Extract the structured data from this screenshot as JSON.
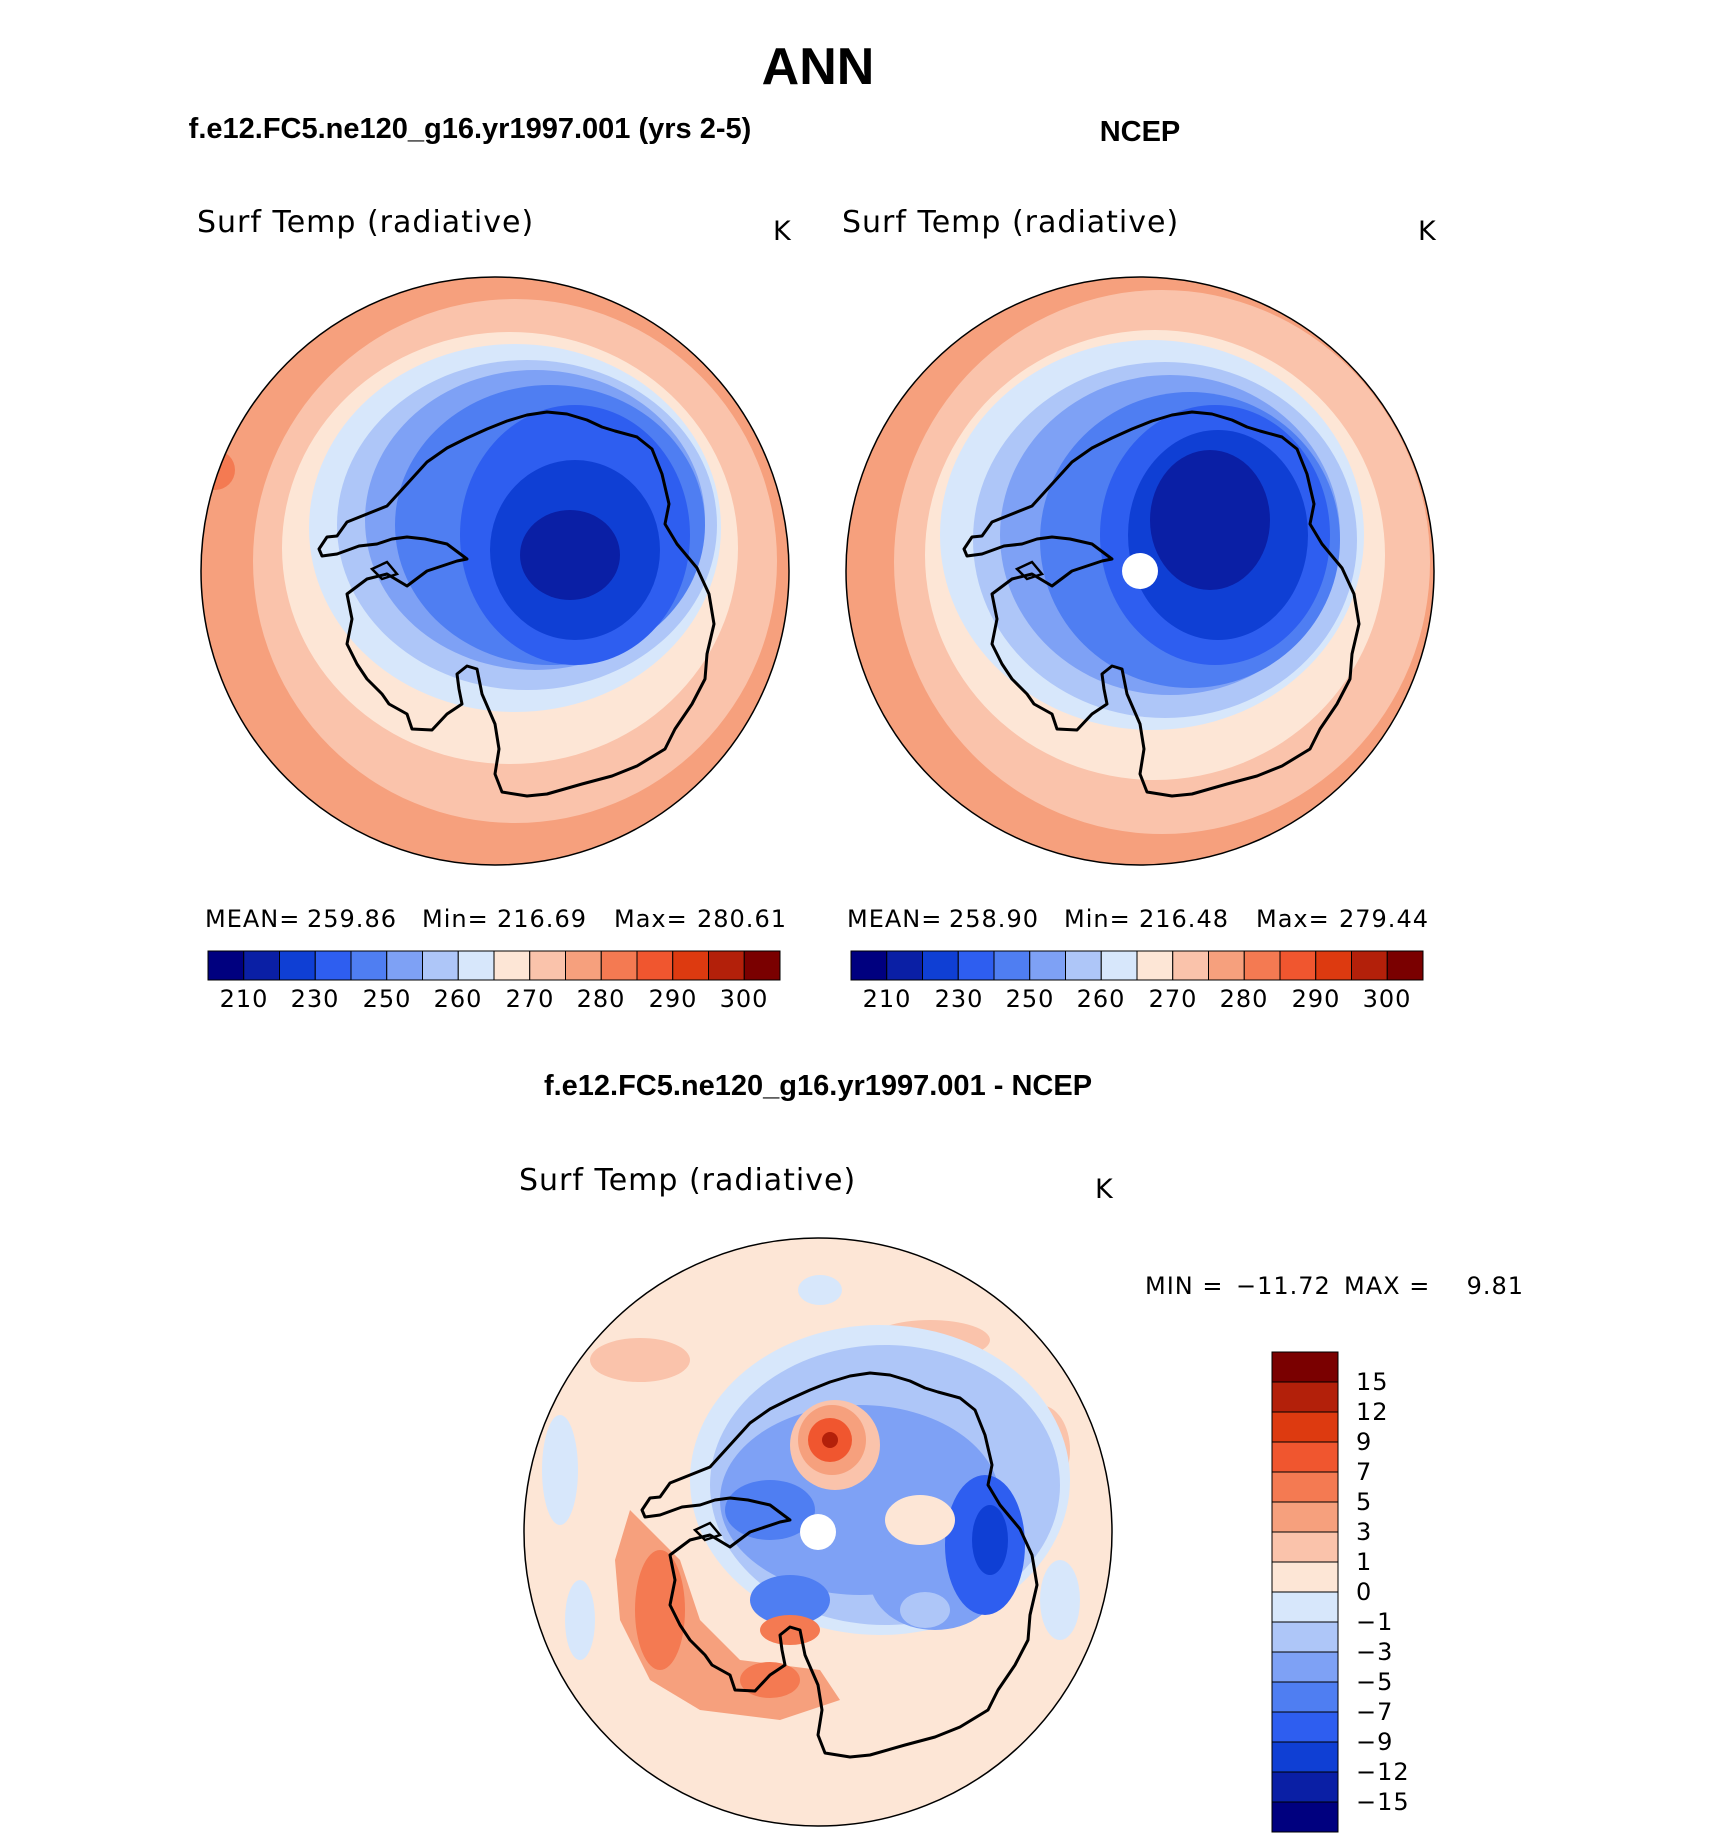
{
  "season": "ANN",
  "panels": [
    {
      "title": "f.e12.FC5.ne120_g16.yr1997.001 (yrs 2-5)",
      "field": "Surf Temp (radiative)",
      "units": "K",
      "stats": {
        "mean_label": "MEAN=",
        "mean": "259.86",
        "min_label": "Min=",
        "min": "216.69",
        "max_label": "Max=",
        "max": "280.61"
      }
    },
    {
      "title": "NCEP",
      "field": "Surf Temp (radiative)",
      "units": "K",
      "stats": {
        "mean_label": "MEAN=",
        "mean": "258.90",
        "min_label": "Min=",
        "min": "216.48",
        "max_label": "Max=",
        "max": "279.44"
      }
    },
    {
      "title": "f.e12.FC5.ne120_g16.yr1997.001 - NCEP",
      "field": "Surf Temp (radiative)",
      "units": "K",
      "stats": {
        "min_label": "MIN =",
        "min": "−11.72",
        "max_label": "MAX =",
        "max": "9.81"
      }
    }
  ],
  "abs_colorbar": {
    "labels": [
      "210",
      "230",
      "250",
      "260",
      "270",
      "280",
      "290",
      "300"
    ],
    "colors": [
      "#00007f",
      "#0a1fa5",
      "#0f3fd4",
      "#2e5ef0",
      "#4f7ef2",
      "#7ea1f5",
      "#aec6f8",
      "#d7e7fb",
      "#fde6d6",
      "#fac3ab",
      "#f6a07d",
      "#f47a52",
      "#f0562f",
      "#dd3a10",
      "#b3200a",
      "#7a0000"
    ]
  },
  "diff_colorbar": {
    "labels": [
      "15",
      "12",
      "9",
      "7",
      "5",
      "3",
      "1",
      "0",
      "−1",
      "−3",
      "−5",
      "−7",
      "−9",
      "−12",
      "−15"
    ],
    "colors": [
      "#7a0000",
      "#b3200a",
      "#dd3a10",
      "#f0562f",
      "#f47a52",
      "#f6a07d",
      "#fac3ab",
      "#fde6d6",
      "#d7e7fb",
      "#aec6f8",
      "#7ea1f5",
      "#4f7ef2",
      "#2e5ef0",
      "#0f3fd4",
      "#0a1fa5",
      "#00007f"
    ]
  }
}
